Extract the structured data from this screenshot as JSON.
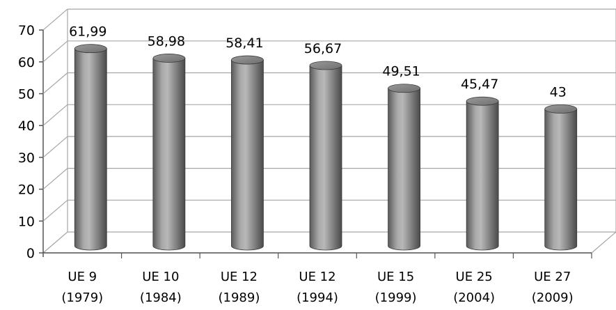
{
  "chart_data": {
    "type": "bar",
    "style": "3d-cylinder",
    "categories": [
      [
        "UE 9",
        "(1979)"
      ],
      [
        "UE 10",
        "(1984)"
      ],
      [
        "UE 12",
        "(1989)"
      ],
      [
        "UE 12",
        "(1994)"
      ],
      [
        "UE 15",
        "(1999)"
      ],
      [
        "UE 25",
        "(2004)"
      ],
      [
        "UE 27",
        "(2009)"
      ]
    ],
    "values": [
      61.99,
      58.98,
      58.41,
      56.67,
      49.51,
      45.47,
      43
    ],
    "data_labels": [
      "61,99",
      "58,98",
      "58,41",
      "56,67",
      "49,51",
      "45,47",
      "43"
    ],
    "yticks": [
      "0",
      "10",
      "20",
      "30",
      "40",
      "50",
      "60",
      "70"
    ],
    "ylim": [
      0,
      70
    ],
    "grid": true,
    "legend": "none",
    "colors": {
      "bar": "#8c8c8c",
      "gridline": "#a6a6a6",
      "axis": "#555555"
    }
  }
}
